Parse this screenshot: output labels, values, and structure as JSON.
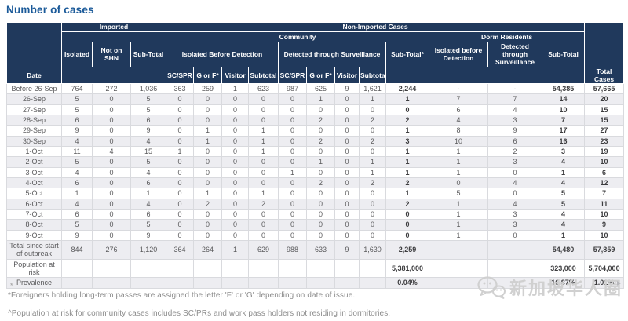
{
  "title": "Number of cases",
  "chart_data": {
    "type": "table",
    "title": "Number of cases",
    "header": {
      "date": "Date",
      "imported": "Imported",
      "non_imported": "Non-Imported Cases",
      "community": "Community",
      "dorm_residents": "Dorm Residents",
      "isolated": "Isolated",
      "not_on_shn": "Not on SHN",
      "imported_sub_total": "Sub-Total",
      "isolated_before_detection": "Isolated Before Detection",
      "detected_through_surveillance": "Detected through Surveillance",
      "community_sub_total": "Sub-Total*",
      "dorm_isolated_before_detection": "Isolated before Detection",
      "dorm_detected_through_surveillance": "Detected through Surveillance",
      "dorm_sub_total": "Sub-Total",
      "sc_spr": "SC/SPR",
      "g_or_f": "G or F*",
      "visitor": "Visitor",
      "subtotal": "Subtotal",
      "total_cases": "Total Cases"
    },
    "bold_value_columns": [
      11,
      14,
      15
    ],
    "rows": [
      {
        "label": "Before 26-Sep",
        "values": [
          "764",
          "272",
          "1,036",
          "363",
          "259",
          "1",
          "623",
          "987",
          "625",
          "9",
          "1,621",
          "2,244",
          "-",
          "-",
          "54,385",
          "57,665"
        ]
      },
      {
        "label": "26-Sep",
        "values": [
          "5",
          "0",
          "5",
          "0",
          "0",
          "0",
          "0",
          "0",
          "1",
          "0",
          "1",
          "1",
          "7",
          "7",
          "14",
          "20"
        ]
      },
      {
        "label": "27-Sep",
        "values": [
          "5",
          "0",
          "5",
          "0",
          "0",
          "0",
          "0",
          "0",
          "0",
          "0",
          "0",
          "0",
          "6",
          "4",
          "10",
          "15"
        ]
      },
      {
        "label": "28-Sep",
        "values": [
          "6",
          "0",
          "6",
          "0",
          "0",
          "0",
          "0",
          "0",
          "2",
          "0",
          "2",
          "2",
          "4",
          "3",
          "7",
          "15"
        ]
      },
      {
        "label": "29-Sep",
        "values": [
          "9",
          "0",
          "9",
          "0",
          "1",
          "0",
          "1",
          "0",
          "0",
          "0",
          "0",
          "1",
          "8",
          "9",
          "17",
          "27"
        ]
      },
      {
        "label": "30-Sep",
        "values": [
          "4",
          "0",
          "4",
          "0",
          "1",
          "0",
          "1",
          "0",
          "2",
          "0",
          "2",
          "3",
          "10",
          "6",
          "16",
          "23"
        ]
      },
      {
        "label": "1-Oct",
        "values": [
          "11",
          "4",
          "15",
          "1",
          "0",
          "0",
          "1",
          "0",
          "0",
          "0",
          "0",
          "1",
          "1",
          "2",
          "3",
          "19"
        ]
      },
      {
        "label": "2-Oct",
        "values": [
          "5",
          "0",
          "5",
          "0",
          "0",
          "0",
          "0",
          "0",
          "1",
          "0",
          "1",
          "1",
          "1",
          "3",
          "4",
          "10"
        ]
      },
      {
        "label": "3-Oct",
        "values": [
          "4",
          "0",
          "4",
          "0",
          "0",
          "0",
          "0",
          "1",
          "0",
          "0",
          "1",
          "1",
          "1",
          "0",
          "1",
          "6"
        ]
      },
      {
        "label": "4-Oct",
        "values": [
          "6",
          "0",
          "6",
          "0",
          "0",
          "0",
          "0",
          "0",
          "2",
          "0",
          "2",
          "2",
          "0",
          "4",
          "4",
          "12"
        ]
      },
      {
        "label": "5-Oct",
        "values": [
          "1",
          "0",
          "1",
          "0",
          "1",
          "0",
          "1",
          "0",
          "0",
          "0",
          "0",
          "1",
          "5",
          "0",
          "5",
          "7"
        ]
      },
      {
        "label": "6-Oct",
        "values": [
          "4",
          "0",
          "4",
          "0",
          "2",
          "0",
          "2",
          "0",
          "0",
          "0",
          "0",
          "2",
          "1",
          "4",
          "5",
          "11"
        ]
      },
      {
        "label": "7-Oct",
        "values": [
          "6",
          "0",
          "6",
          "0",
          "0",
          "0",
          "0",
          "0",
          "0",
          "0",
          "0",
          "0",
          "1",
          "3",
          "4",
          "10"
        ]
      },
      {
        "label": "8-Oct",
        "values": [
          "5",
          "0",
          "5",
          "0",
          "0",
          "0",
          "0",
          "0",
          "0",
          "0",
          "0",
          "0",
          "1",
          "3",
          "4",
          "9"
        ]
      },
      {
        "label": "9-Oct",
        "values": [
          "9",
          "0",
          "9",
          "0",
          "0",
          "0",
          "0",
          "0",
          "0",
          "0",
          "0",
          "0",
          "1",
          "0",
          "1",
          "10"
        ]
      }
    ],
    "summary_rows": [
      {
        "label": "Total since start of outbreak",
        "values": [
          "844",
          "276",
          "1,120",
          "364",
          "264",
          "1",
          "629",
          "988",
          "633",
          "9",
          "1,630",
          "2,259",
          "",
          "",
          "54,480",
          "57,859"
        ]
      },
      {
        "label": "Population at risk",
        "values": [
          "",
          "",
          "",
          "",
          "",
          "",
          "",
          "",
          "",
          "",
          "",
          "5,381,000",
          "",
          "",
          "323,000",
          "5,704,000"
        ]
      },
      {
        "label": "Prevalence",
        "values": [
          "",
          "",
          "",
          "",
          "",
          "",
          "",
          "",
          "",
          "",
          "",
          "0.04%",
          "",
          "",
          "16.87%",
          "1.01%"
        ]
      }
    ]
  },
  "footnote_marker": "*",
  "footnotes": [
    "*Foreigners holding long-term passes are assigned the letter 'F' or 'G' depending on date of issue.",
    "^Population at risk for community cases includes SC/PRs and work pass holders not residing in dormitories."
  ],
  "watermark": {
    "text": "新加坡华人圈"
  },
  "colors": {
    "header_bg": "#20395c",
    "title": "#1b5a99",
    "row_alt": "#ededf1",
    "grid": "#d9dade",
    "text": "#5a5a5c",
    "text_bold": "#3d3d3f",
    "footnote": "#8c8c8c",
    "watermark": "#d0d0d0"
  }
}
